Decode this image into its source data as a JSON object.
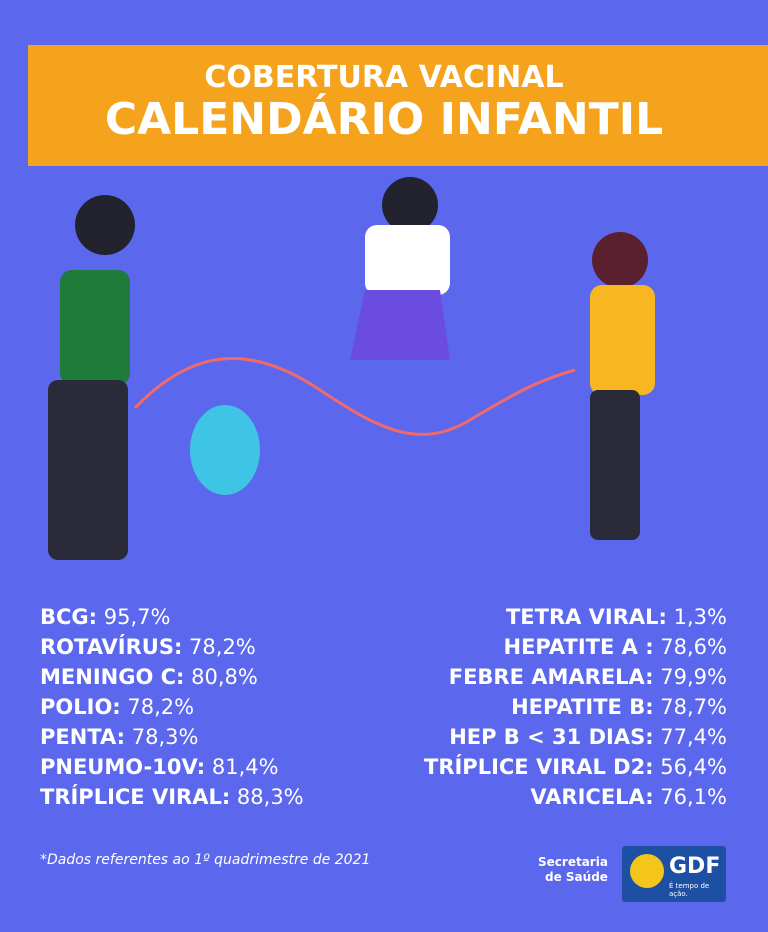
{
  "header": {
    "title": "COBERTURA VACINAL",
    "subtitle": "CALENDÁRIO INFANTIL"
  },
  "left_list": [
    {
      "label": "BCG:",
      "value": "95,7%"
    },
    {
      "label": "ROTAVÍRUS:",
      "value": "78,2%"
    },
    {
      "label": "MENINGO C:",
      "value": "80,8%"
    },
    {
      "label": "POLIO:",
      "value": "78,2%"
    },
    {
      "label": "PENTA:",
      "value": "78,3%"
    },
    {
      "label": "PNEUMO-10V:",
      "value": "81,4%"
    },
    {
      "label": "TRÍPLICE VIRAL:",
      "value": "88,3%"
    }
  ],
  "right_list": [
    {
      "label": "TETRA VIRAL:",
      "value": "1,3%"
    },
    {
      "label": "HEPATITE A :",
      "value": "78,6%"
    },
    {
      "label": "FEBRE AMARELA:",
      "value": "79,9%"
    },
    {
      "label": "HEPATITE B:",
      "value": "78,7%"
    },
    {
      "label": "HEP B < 31 DIAS:",
      "value": "77,4%"
    },
    {
      "label": "TRÍPLICE VIRAL D2:",
      "value": "56,4%"
    },
    {
      "label": "VARICELA:",
      "value": "76,1%"
    }
  ],
  "footnote": "*Dados referentes ao 1º quadrimestre de 2021",
  "logo": {
    "department": [
      "Secretaria",
      "de Saúde"
    ],
    "brand": "GDF",
    "slogan": "É tempo de ação."
  }
}
